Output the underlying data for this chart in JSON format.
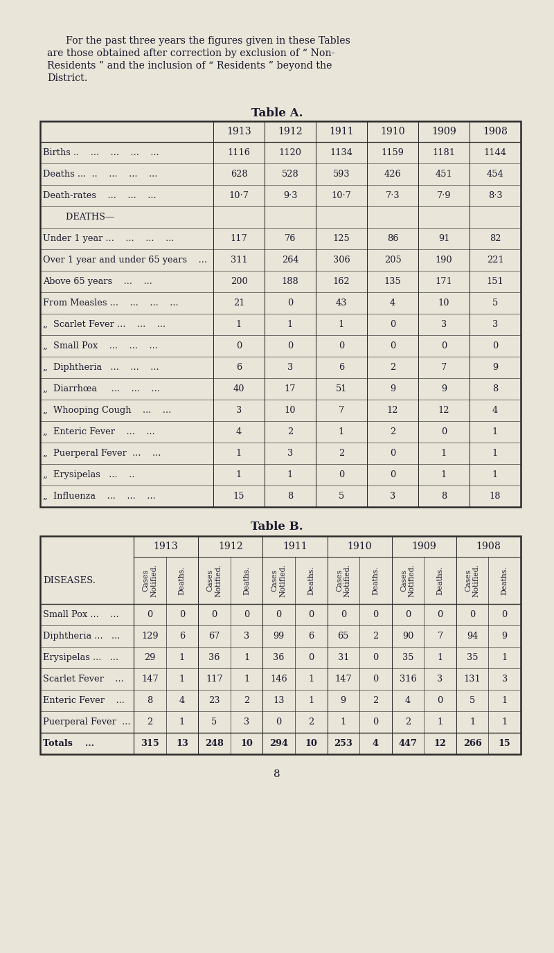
{
  "bg_color": "#e9e5d9",
  "text_color": "#1a1a2e",
  "intro_text_lines": [
    "For the past three years the figures given in these Tables",
    "are those obtained after correction by exclusion of “ Non-",
    "Residents ” and the inclusion of “ Residents ” beyond the",
    "District."
  ],
  "table_a_title": "Table A.",
  "table_a_years": [
    "1913",
    "1912",
    "1911",
    "1910",
    "1909",
    "1908"
  ],
  "table_a_row_labels": [
    "Births ..    ...    ...    ...    ...",
    "Deaths ...  ..    ...    ...    ...",
    "Death-rates    ...    ...    ...",
    "        DEATHS—",
    "Under 1 year ...    ...    ...    ...",
    "Over 1 year and under 65 years    ...",
    "Above 65 years    ...    ...",
    "From Measles ...    ...    ...    ...",
    "„  Scarlet Fever ...    ...    ...",
    "„  Small Pox    ...    ...    ...",
    "„  Diphtheria   ...    ...    ...",
    "„  Diarrhœa     ...    ...    ...",
    "„  Whooping Cough    ...    ...",
    "„  Enteric Fever    ...    ...",
    "„  Puerperal Fever  ...    ...",
    "„  Erysipelas   ...    ..",
    "„  Influenza    ...    ...    ..."
  ],
  "table_a_data": [
    [
      "1116",
      "1120",
      "1134",
      "1159",
      "1181",
      "1144"
    ],
    [
      "628",
      "528",
      "593",
      "426",
      "451",
      "454"
    ],
    [
      "10·7",
      "9·3",
      "10·7",
      "7·3",
      "7·9",
      "8·3"
    ],
    [
      "",
      "",
      "",
      "",
      "",
      ""
    ],
    [
      "117",
      "76",
      "125",
      "86",
      "91",
      "82"
    ],
    [
      "311",
      "264",
      "306",
      "205",
      "190",
      "221"
    ],
    [
      "200",
      "188",
      "162",
      "135",
      "171",
      "151"
    ],
    [
      "21",
      "0",
      "43",
      "4",
      "10",
      "5"
    ],
    [
      "1",
      "1",
      "1",
      "0",
      "3",
      "3"
    ],
    [
      "0",
      "0",
      "0",
      "0",
      "0",
      "0"
    ],
    [
      "6",
      "3",
      "6",
      "2",
      "7",
      "9"
    ],
    [
      "40",
      "17",
      "51",
      "9",
      "9",
      "8"
    ],
    [
      "3",
      "10",
      "7",
      "12",
      "12",
      "4"
    ],
    [
      "4",
      "2",
      "1",
      "2",
      "0",
      "1"
    ],
    [
      "1",
      "3",
      "2",
      "0",
      "1",
      "1"
    ],
    [
      "1",
      "1",
      "0",
      "0",
      "1",
      "1"
    ],
    [
      "15",
      "8",
      "5",
      "3",
      "8",
      "18"
    ]
  ],
  "table_b_title": "Table B.",
  "table_b_years": [
    "1913",
    "1912",
    "1911",
    "1910",
    "1909",
    "1908"
  ],
  "table_b_row_labels": [
    "Small Pox ...    ...",
    "Diphtheria ...   ...",
    "Erysipelas ...   ...",
    "Scarlet Fever    ...",
    "Enteric Fever    ...",
    "Puerperal Fever  ..."
  ],
  "table_b_data": [
    [
      "0",
      "0",
      "0",
      "0",
      "0",
      "0",
      "0",
      "0",
      "0",
      "0",
      "0",
      "0"
    ],
    [
      "129",
      "6",
      "67",
      "3",
      "99",
      "6",
      "65",
      "2",
      "90",
      "7",
      "94",
      "9"
    ],
    [
      "29",
      "1",
      "36",
      "1",
      "36",
      "0",
      "31",
      "0",
      "35",
      "1",
      "35",
      "1"
    ],
    [
      "147",
      "1",
      "117",
      "1",
      "146",
      "1",
      "147",
      "0",
      "316",
      "3",
      "131",
      "3"
    ],
    [
      "8",
      "4",
      "23",
      "2",
      "13",
      "1",
      "9",
      "2",
      "4",
      "0",
      "5",
      "1"
    ],
    [
      "2",
      "1",
      "5",
      "3",
      "0",
      "2",
      "1",
      "0",
      "2",
      "1",
      "1",
      "1"
    ]
  ],
  "table_b_totals": [
    "315",
    "13",
    "248",
    "10",
    "294",
    "10",
    "253",
    "4",
    "447",
    "12",
    "266",
    "15"
  ],
  "page_number": "8"
}
